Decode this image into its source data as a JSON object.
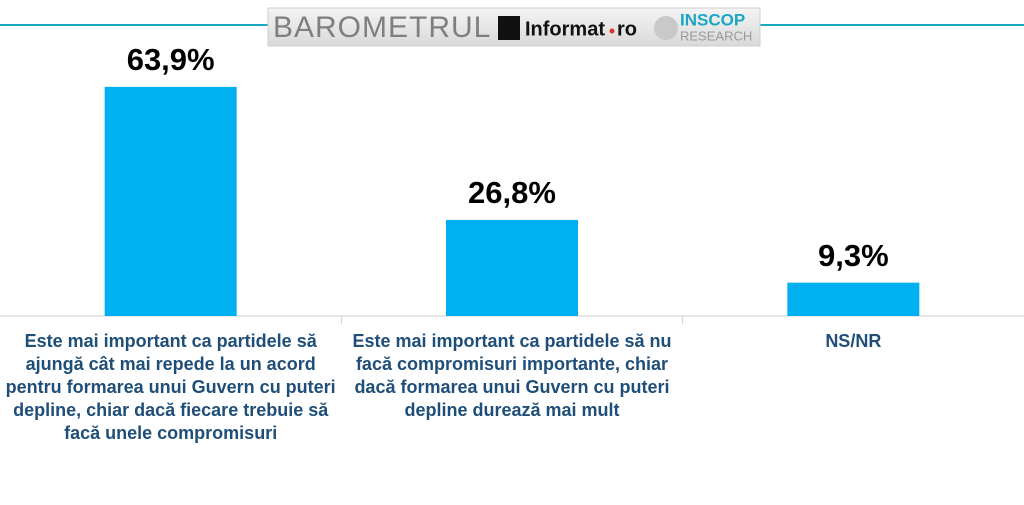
{
  "header": {
    "brand": "BAROMETRUL",
    "partner": "Informat",
    "partner_suffix": "ro",
    "institute": "INSCOP",
    "institute_sub": "RESEARCH"
  },
  "chart_data": {
    "type": "bar",
    "categories": [
      "Este mai important ca partidele să ajungă cât mai repede la un acord pentru formarea unui Guvern cu puteri depline, chiar dacă fiecare trebuie să facă unele compromisuri",
      "Este mai important ca partidele să nu facă compromisuri importante, chiar dacă formarea unui Guvern cu puteri depline durează mai mult",
      "NS/NR"
    ],
    "values": [
      63.9,
      26.8,
      9.3
    ],
    "value_labels": [
      "63,9%",
      "26,8%",
      "9,3%"
    ],
    "color": "#00b0f0",
    "ylim": [
      0,
      70
    ]
  }
}
